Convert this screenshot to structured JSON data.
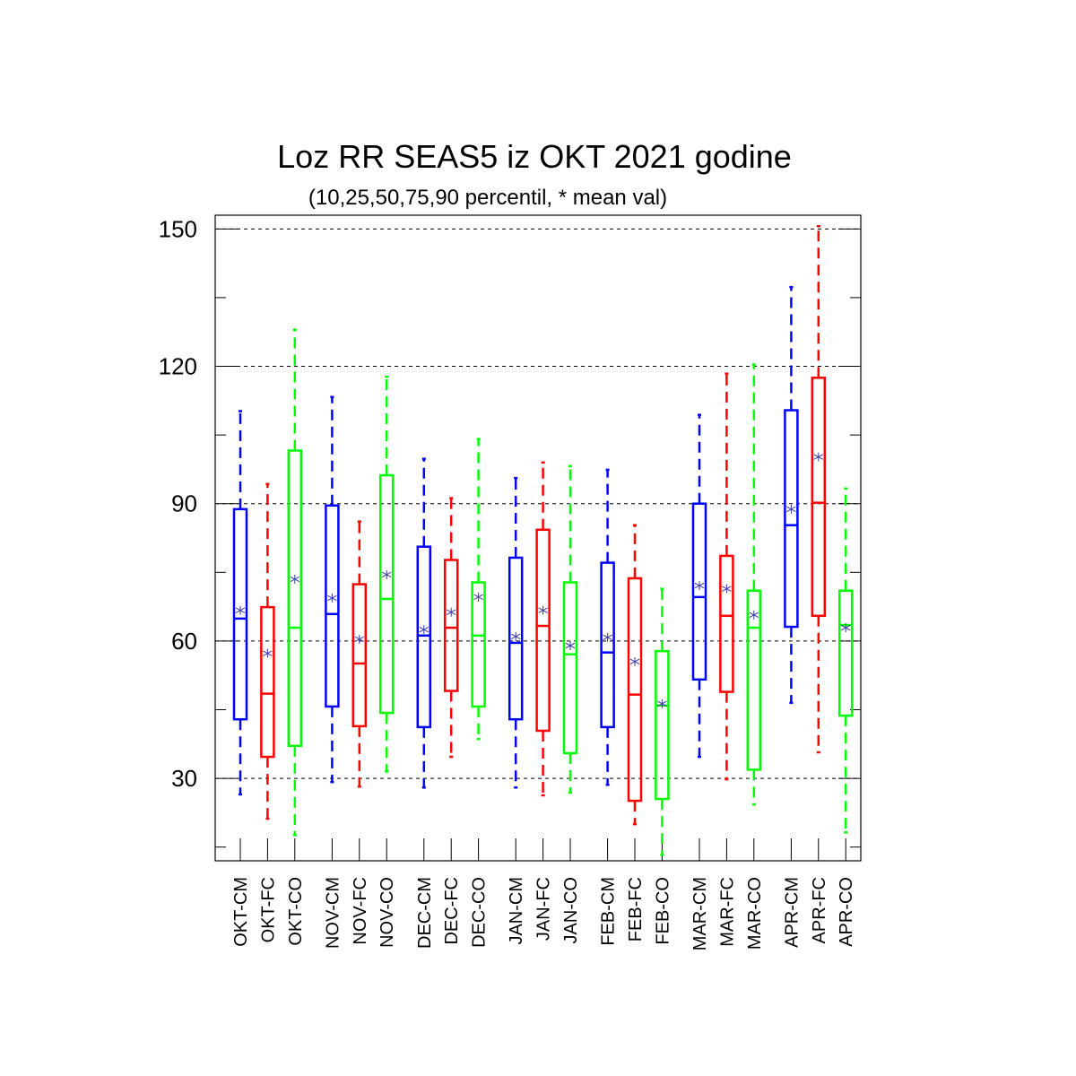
{
  "chart_data": {
    "type": "box",
    "title": "Loz RR SEAS5 iz OKT 2021 godine",
    "subtitle": "(10,25,50,75,90 percentil, * mean val)",
    "xlabel": "",
    "ylabel": "",
    "ylim": [
      12,
      153
    ],
    "yticks": [
      30,
      60,
      90,
      120,
      150
    ],
    "ytick_labels": [
      "30",
      "60",
      "90",
      "120",
      "150"
    ],
    "grid": "horizontal dashed at major ticks",
    "legend": "none",
    "colors": {
      "CM": "#0000ff",
      "FC": "#ff0000",
      "CO": "#00ff00",
      "mean_marker": "#3a3aa8"
    },
    "groups": [
      "OKT",
      "NOV",
      "DEC",
      "JAN",
      "FEB",
      "MAR",
      "APR"
    ],
    "boxes": [
      {
        "label": "OKT-CM",
        "series": "CM",
        "p10": 26.5,
        "p25": 42.9,
        "p50": 64.9,
        "p75": 88.8,
        "p90": 110.2,
        "mean": 66.7
      },
      {
        "label": "OKT-FC",
        "series": "FC",
        "p10": 21.2,
        "p25": 34.7,
        "p50": 48.5,
        "p75": 67.4,
        "p90": 94.3,
        "mean": 57.3
      },
      {
        "label": "OKT-CO",
        "series": "CO",
        "p10": 17.6,
        "p25": 37.1,
        "p50": 62.9,
        "p75": 101.6,
        "p90": 128.0,
        "mean": 73.5
      },
      {
        "label": "NOV-CM",
        "series": "CM",
        "p10": 29.2,
        "p25": 45.7,
        "p50": 65.9,
        "p75": 89.6,
        "p90": 113.3,
        "mean": 69.4
      },
      {
        "label": "NOV-FC",
        "series": "FC",
        "p10": 28.2,
        "p25": 41.4,
        "p50": 55.1,
        "p75": 72.4,
        "p90": 86.1,
        "mean": 60.4
      },
      {
        "label": "NOV-CO",
        "series": "CO",
        "p10": 31.5,
        "p25": 44.3,
        "p50": 69.2,
        "p75": 96.2,
        "p90": 117.7,
        "mean": 74.5
      },
      {
        "label": "DEC-CM",
        "series": "CM",
        "p10": 28.0,
        "p25": 41.2,
        "p50": 61.2,
        "p75": 80.6,
        "p90": 99.8,
        "mean": 62.5
      },
      {
        "label": "DEC-FC",
        "series": "FC",
        "p10": 34.7,
        "p25": 49.1,
        "p50": 62.9,
        "p75": 77.7,
        "p90": 91.2,
        "mean": 66.3
      },
      {
        "label": "DEC-CO",
        "series": "CO",
        "p10": 38.6,
        "p25": 45.7,
        "p50": 61.2,
        "p75": 72.8,
        "p90": 104.1,
        "mean": 69.6
      },
      {
        "label": "JAN-CM",
        "series": "CM",
        "p10": 28.0,
        "p25": 42.9,
        "p50": 59.6,
        "p75": 78.2,
        "p90": 95.6,
        "mean": 61.0
      },
      {
        "label": "JAN-FC",
        "series": "FC",
        "p10": 26.3,
        "p25": 40.4,
        "p50": 63.3,
        "p75": 84.3,
        "p90": 99.0,
        "mean": 66.7
      },
      {
        "label": "JAN-CO",
        "series": "CO",
        "p10": 26.9,
        "p25": 35.5,
        "p50": 57.1,
        "p75": 72.8,
        "p90": 98.2,
        "mean": 59.0
      },
      {
        "label": "FEB-CM",
        "series": "CM",
        "p10": 28.6,
        "p25": 41.2,
        "p50": 57.5,
        "p75": 77.1,
        "p90": 97.4,
        "mean": 60.8
      },
      {
        "label": "FEB-FC",
        "series": "FC",
        "p10": 20.0,
        "p25": 25.1,
        "p50": 48.3,
        "p75": 73.7,
        "p90": 85.3,
        "mean": 55.5
      },
      {
        "label": "FEB-CO",
        "series": "CO",
        "p10": 13.3,
        "p25": 25.5,
        "p50": 45.9,
        "p75": 57.8,
        "p90": 71.4,
        "mean": 46.3
      },
      {
        "label": "MAR-CM",
        "series": "CM",
        "p10": 34.7,
        "p25": 51.6,
        "p50": 69.6,
        "p75": 90.0,
        "p90": 109.4,
        "mean": 72.1
      },
      {
        "label": "MAR-FC",
        "series": "FC",
        "p10": 29.8,
        "p25": 48.9,
        "p50": 65.5,
        "p75": 78.6,
        "p90": 118.4,
        "mean": 71.4
      },
      {
        "label": "MAR-CO",
        "series": "CO",
        "p10": 24.3,
        "p25": 31.9,
        "p50": 62.9,
        "p75": 71.0,
        "p90": 120.4,
        "mean": 65.7
      },
      {
        "label": "APR-CM",
        "series": "CM",
        "p10": 46.5,
        "p25": 63.1,
        "p50": 85.3,
        "p75": 110.4,
        "p90": 137.3,
        "mean": 88.8
      },
      {
        "label": "APR-FC",
        "series": "FC",
        "p10": 35.7,
        "p25": 65.5,
        "p50": 90.2,
        "p75": 117.5,
        "p90": 150.6,
        "mean": 100.2
      },
      {
        "label": "APR-CO",
        "series": "CO",
        "p10": 18.2,
        "p25": 43.7,
        "p50": 63.5,
        "p75": 71.0,
        "p90": 93.3,
        "mean": 62.9
      }
    ]
  }
}
